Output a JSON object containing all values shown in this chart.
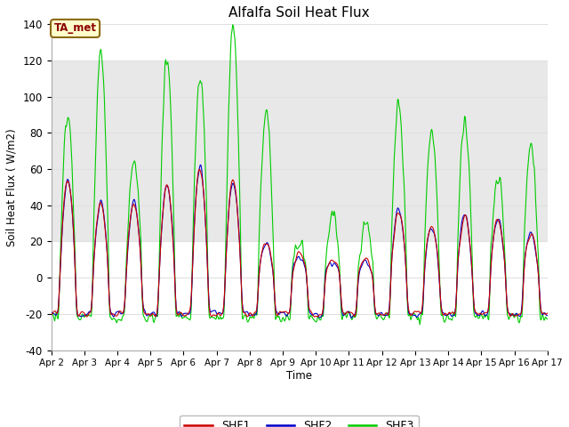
{
  "title": "Alfalfa Soil Heat Flux",
  "ylabel": "Soil Heat Flux ( W/m2)",
  "xlabel": "Time",
  "ylim": [
    -40,
    140
  ],
  "yticks": [
    -40,
    -20,
    0,
    20,
    40,
    60,
    80,
    100,
    120,
    140
  ],
  "shaded_region": [
    20,
    120
  ],
  "legend_labels": [
    "SHF1",
    "SHF2",
    "SHF3"
  ],
  "legend_colors": [
    "#cc0000",
    "#0000cc",
    "#00cc00"
  ],
  "annotation_text": "TA_met",
  "annotation_color": "#8b0000",
  "annotation_bg": "#ffffcc",
  "fig_facecolor": "#ffffff",
  "plot_facecolor": "#ffffff",
  "shaded_color": "#e8e8e8",
  "grid_color": "#e0e0e0",
  "n_points": 720,
  "x_start": 2,
  "x_end": 17,
  "xtick_positions": [
    2,
    3,
    4,
    5,
    6,
    7,
    8,
    9,
    10,
    11,
    12,
    13,
    14,
    15,
    16,
    17
  ],
  "xtick_labels": [
    "Apr 2",
    "Apr 3",
    "Apr 4",
    "Apr 5",
    "Apr 6",
    "Apr 7",
    "Apr 8",
    "Apr 9",
    "Apr 10",
    "Apr 11",
    "Apr 12",
    "Apr 13",
    "Apr 14",
    "Apr 15",
    "Apr 16",
    "Apr 17"
  ],
  "day_amp_shf12": [
    55,
    42,
    42,
    52,
    62,
    55,
    20,
    13,
    10,
    10,
    38,
    28,
    35,
    33,
    25,
    5
  ],
  "day_amp_shf3": [
    90,
    127,
    65,
    122,
    112,
    140,
    92,
    22,
    35,
    30,
    97,
    83,
    86,
    56,
    74,
    10
  ],
  "night_val": -20,
  "noise_shf12": 2.0,
  "noise_shf3": 2.0
}
